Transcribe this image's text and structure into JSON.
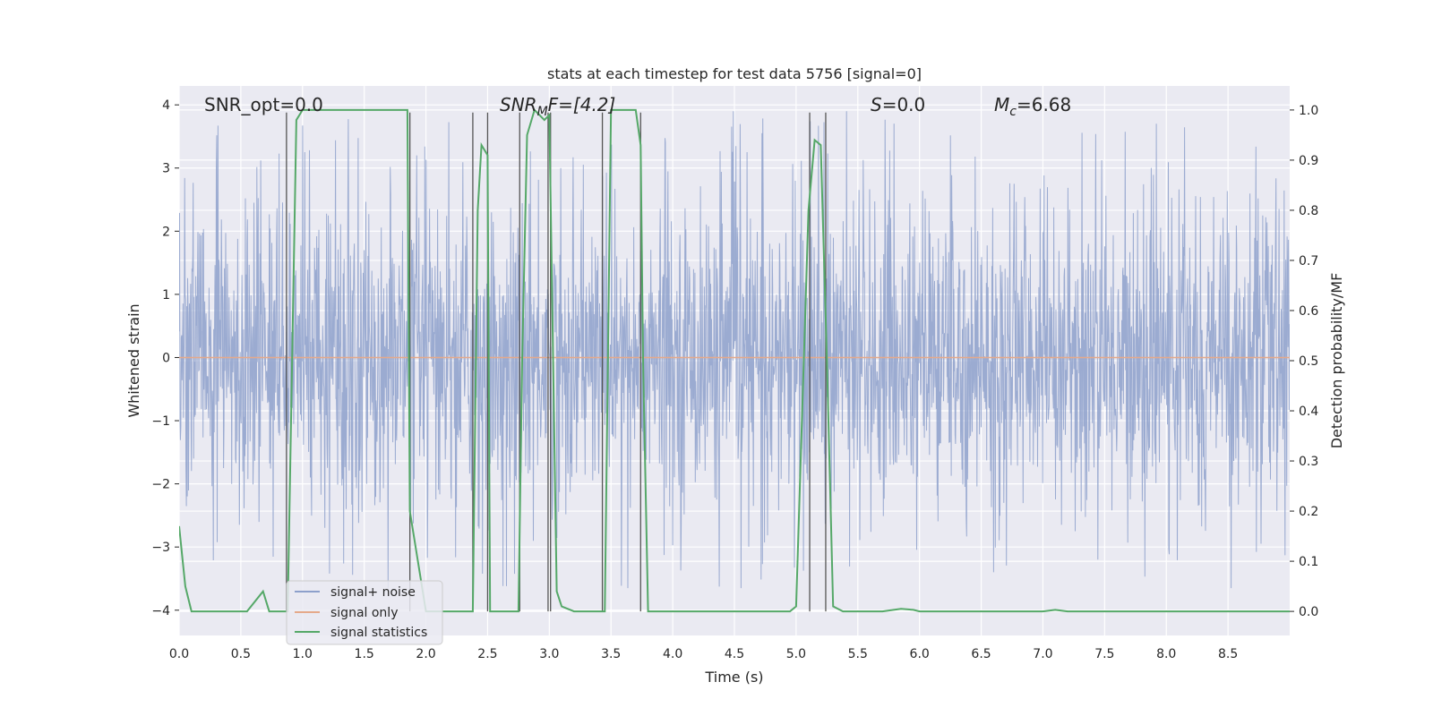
{
  "chart_data": {
    "type": "line",
    "title": "stats at each timestep for test data 5756 [signal=0]",
    "xlabel": "Time (s)",
    "ylabel": "Whitened strain",
    "y2label": "Detection probability/MF",
    "xlim": [
      0.0,
      9.0
    ],
    "ylim": [
      -4.4,
      4.3
    ],
    "y2lim": [
      -0.048,
      1.048
    ],
    "xticks": [
      "0.0",
      "0.5",
      "1.0",
      "1.5",
      "2.0",
      "2.5",
      "3.0",
      "3.5",
      "4.0",
      "4.5",
      "5.0",
      "5.5",
      "6.0",
      "6.5",
      "7.0",
      "7.5",
      "8.0",
      "8.5"
    ],
    "yticks": [
      "4",
      "3",
      "2",
      "1",
      "0",
      "−1",
      "−2",
      "−3",
      "−4"
    ],
    "y2ticks": [
      "1.0",
      "0.9",
      "0.8",
      "0.7",
      "0.6",
      "0.5",
      "0.4",
      "0.3",
      "0.2",
      "0.1",
      "0.0"
    ],
    "grid": true,
    "legend_position": "lower-left",
    "annotations": {
      "snr_opt": "SNR_opt=0.0",
      "snr_mf_main": "SNR",
      "snr_mf_sub": "M",
      "snr_mf_rest": "F=[4.2]",
      "s_main": "S",
      "s_rest": "=0.0",
      "mc_main": "M",
      "mc_sub": "c",
      "mc_rest": "=6.68"
    },
    "series": [
      {
        "name": "signal+ noise",
        "color": "#8da0cb",
        "envelope": {
          "typical_abs": 1.6,
          "peak_range": [
            -3.65,
            3.9
          ]
        }
      },
      {
        "name": "signal only",
        "color": "#e5a98a",
        "values_constant": 0.0
      },
      {
        "name": "signal statistics",
        "color": "#55a868",
        "x": [
          0.0,
          0.05,
          0.1,
          0.3,
          0.55,
          0.68,
          0.73,
          0.82,
          0.87,
          0.88,
          0.95,
          1.0,
          1.5,
          1.85,
          1.87,
          2.0,
          2.3,
          2.38,
          2.42,
          2.45,
          2.5,
          2.52,
          2.55,
          2.75,
          2.78,
          2.82,
          2.88,
          2.96,
          3.0,
          3.06,
          3.1,
          3.2,
          3.3,
          3.45,
          3.5,
          3.55,
          3.7,
          3.74,
          3.76,
          3.8,
          4.0,
          4.5,
          4.95,
          5.0,
          5.1,
          5.15,
          5.2,
          5.25,
          5.3,
          5.38,
          5.5,
          5.7,
          5.85,
          5.95,
          6.0,
          7.0,
          7.1,
          7.2,
          9.0
        ],
        "values": [
          0.17,
          0.05,
          0.0,
          0.0,
          0.0,
          0.04,
          0.0,
          0.0,
          0.0,
          0.0,
          0.98,
          1.0,
          1.0,
          1.0,
          0.2,
          0.0,
          0.0,
          0.0,
          0.8,
          0.93,
          0.91,
          0.0,
          0.0,
          0.0,
          0.5,
          0.95,
          1.0,
          0.98,
          0.99,
          0.04,
          0.01,
          0.0,
          0.0,
          0.0,
          1.0,
          1.0,
          1.0,
          0.93,
          0.5,
          0.0,
          0.0,
          0.0,
          0.0,
          0.01,
          0.8,
          0.94,
          0.93,
          0.5,
          0.01,
          0.0,
          0.0,
          0.0,
          0.005,
          0.003,
          0.0,
          0.0,
          0.003,
          0.0,
          0.0
        ]
      }
    ],
    "vertical_markers": [
      0.87,
      1.87,
      2.38,
      2.5,
      2.76,
      2.99,
      3.01,
      3.43,
      3.74,
      5.11,
      5.24
    ]
  }
}
